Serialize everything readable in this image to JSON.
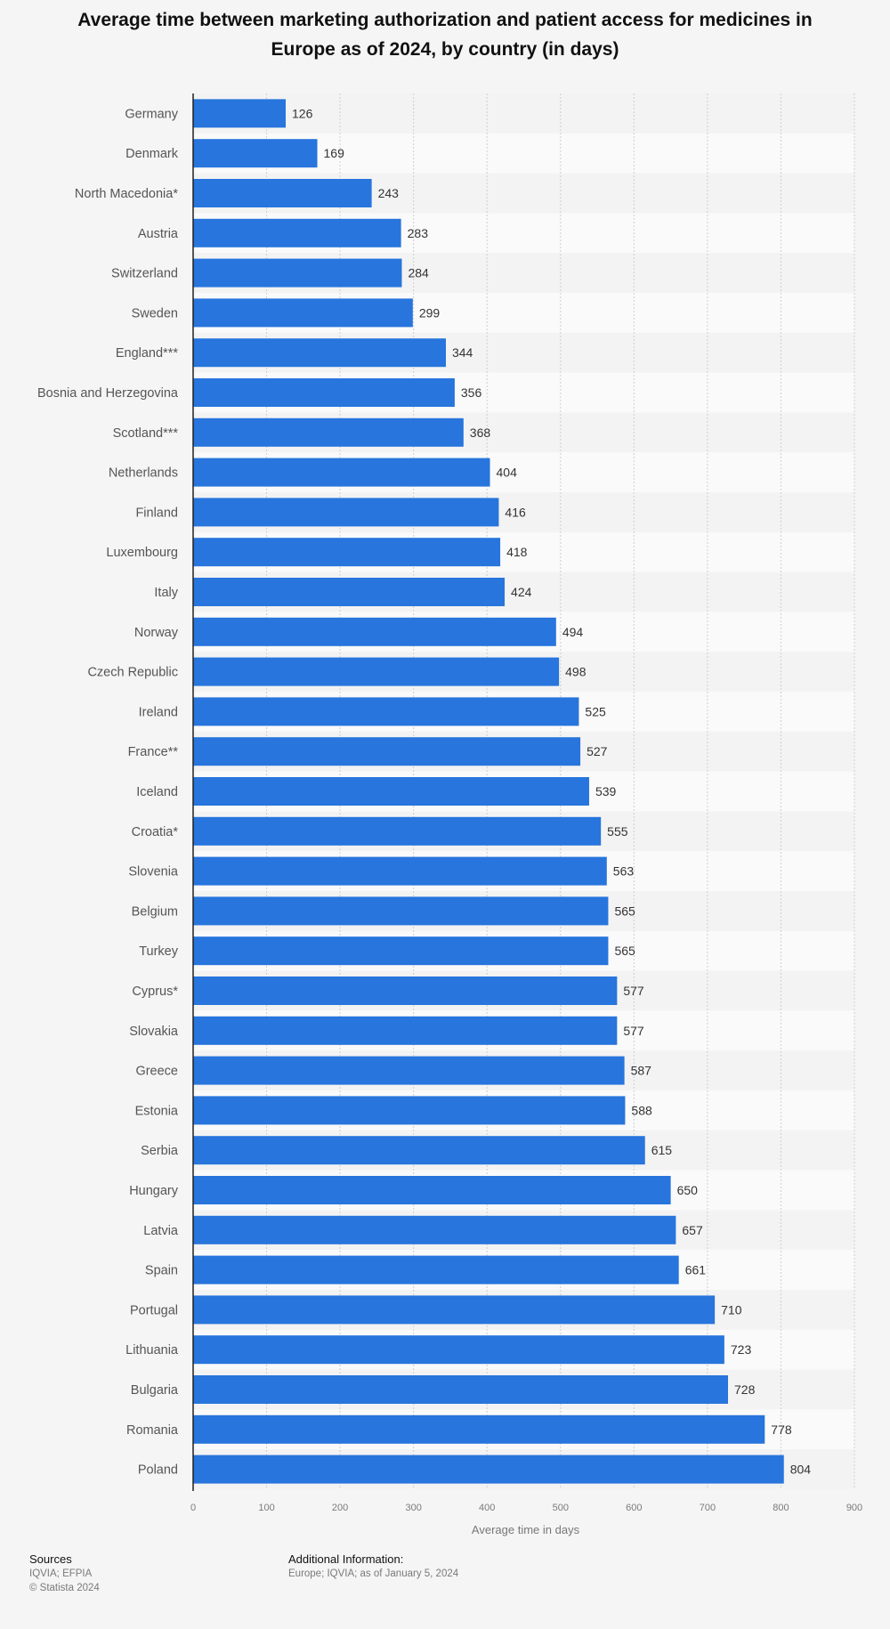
{
  "title": "Average time between marketing authorization and patient access for medicines in Europe as of 2024, by country (in days)",
  "chart_data": {
    "type": "bar",
    "orientation": "horizontal",
    "bar_color": "#2775dd",
    "title": "Average time between marketing authorization and patient access for medicines in Europe as of 2024, by country (in days)",
    "xlabel": "Average time in days",
    "ylabel": "",
    "xlim": [
      0,
      900
    ],
    "xticks": [
      0,
      100,
      200,
      300,
      400,
      500,
      600,
      700,
      800,
      900
    ],
    "grid": true,
    "categories": [
      "Germany",
      "Denmark",
      "North Macedonia*",
      "Austria",
      "Switzerland",
      "Sweden",
      "England***",
      "Bosnia and Herzegovina",
      "Scotland***",
      "Netherlands",
      "Finland",
      "Luxembourg",
      "Italy",
      "Norway",
      "Czech Republic",
      "Ireland",
      "France**",
      "Iceland",
      "Croatia*",
      "Slovenia",
      "Belgium",
      "Turkey",
      "Cyprus*",
      "Slovakia",
      "Greece",
      "Estonia",
      "Serbia",
      "Hungary",
      "Latvia",
      "Spain",
      "Portugal",
      "Lithuania",
      "Bulgaria",
      "Romania",
      "Poland"
    ],
    "values": [
      126,
      169,
      243,
      283,
      284,
      299,
      344,
      356,
      368,
      404,
      416,
      418,
      424,
      494,
      498,
      525,
      527,
      539,
      555,
      563,
      565,
      565,
      577,
      577,
      587,
      588,
      615,
      650,
      657,
      661,
      710,
      723,
      728,
      778,
      804
    ]
  },
  "footer": {
    "sources_heading": "Sources",
    "sources_line": "IQVIA; EFPIA",
    "copyright": "© Statista 2024",
    "info_heading": "Additional Information:",
    "info_line": "Europe; IQVIA; as of January 5, 2024"
  }
}
